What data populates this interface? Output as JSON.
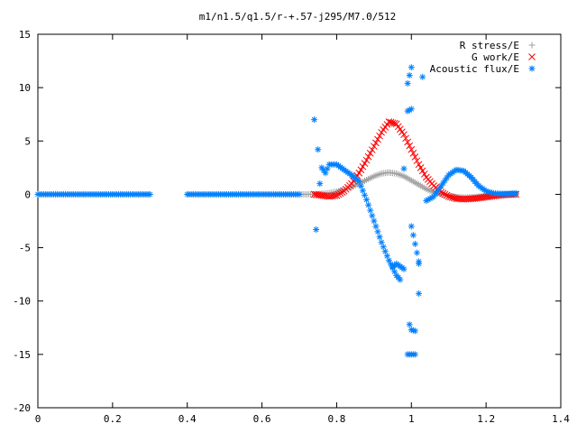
{
  "chart_data": {
    "type": "scatter",
    "title": "m1/n1.5/q1.5/r-+.57-j295/M7.0/512",
    "xlabel": "",
    "ylabel": "",
    "xlim": [
      0,
      1.4
    ],
    "ylim": [
      -20,
      15
    ],
    "x_ticks": [
      "0",
      "0.2",
      "0.4",
      "0.6",
      "0.8",
      "1",
      "1.2",
      "1.4"
    ],
    "x_tick_values": [
      0,
      0.2,
      0.4,
      0.6,
      0.8,
      1.0,
      1.2,
      1.4
    ],
    "y_ticks": [
      "15",
      "10",
      "5",
      "0",
      "-5",
      "-10",
      "-15",
      "-20"
    ],
    "y_tick_values": [
      15,
      10,
      5,
      0,
      -5,
      -10,
      -15,
      -20
    ],
    "grid": false,
    "legend_position": "top-right",
    "series": [
      {
        "name": "R stress/E",
        "marker": "+",
        "color": "#a0a0a0",
        "points": [
          [
            0.0,
            0
          ],
          [
            0.1,
            0
          ],
          [
            0.2,
            0
          ],
          [
            0.3,
            0
          ],
          [
            0.4,
            0
          ],
          [
            0.5,
            0
          ],
          [
            0.6,
            0
          ],
          [
            0.7,
            0
          ],
          [
            0.74,
            0.0
          ],
          [
            0.76,
            0.05
          ],
          [
            0.78,
            0.12
          ],
          [
            0.8,
            0.25
          ],
          [
            0.82,
            0.45
          ],
          [
            0.84,
            0.7
          ],
          [
            0.86,
            1.0
          ],
          [
            0.88,
            1.35
          ],
          [
            0.9,
            1.7
          ],
          [
            0.92,
            1.95
          ],
          [
            0.94,
            2.05
          ],
          [
            0.96,
            1.95
          ],
          [
            0.98,
            1.7
          ],
          [
            1.0,
            1.3
          ],
          [
            1.02,
            0.9
          ],
          [
            1.04,
            0.5
          ],
          [
            1.06,
            0.2
          ],
          [
            1.08,
            0.0
          ],
          [
            1.1,
            -0.15
          ],
          [
            1.12,
            -0.25
          ],
          [
            1.14,
            -0.3
          ],
          [
            1.16,
            -0.28
          ],
          [
            1.18,
            -0.22
          ],
          [
            1.2,
            -0.15
          ],
          [
            1.22,
            -0.08
          ],
          [
            1.24,
            -0.03
          ],
          [
            1.26,
            0.0
          ],
          [
            1.28,
            0.0
          ]
        ]
      },
      {
        "name": "G work/E",
        "marker": "x",
        "color": "#ff0000",
        "points": [
          [
            0.74,
            0.0
          ],
          [
            0.76,
            -0.1
          ],
          [
            0.78,
            -0.2
          ],
          [
            0.8,
            -0.1
          ],
          [
            0.82,
            0.3
          ],
          [
            0.84,
            1.0
          ],
          [
            0.86,
            2.0
          ],
          [
            0.88,
            3.2
          ],
          [
            0.9,
            4.5
          ],
          [
            0.92,
            5.8
          ],
          [
            0.94,
            6.8
          ],
          [
            0.96,
            6.6
          ],
          [
            0.98,
            5.6
          ],
          [
            1.0,
            4.2
          ],
          [
            1.02,
            2.8
          ],
          [
            1.04,
            1.6
          ],
          [
            1.06,
            0.8
          ],
          [
            1.08,
            0.2
          ],
          [
            1.1,
            -0.2
          ],
          [
            1.12,
            -0.4
          ],
          [
            1.14,
            -0.45
          ],
          [
            1.16,
            -0.42
          ],
          [
            1.18,
            -0.35
          ],
          [
            1.2,
            -0.25
          ],
          [
            1.22,
            -0.15
          ],
          [
            1.24,
            -0.08
          ],
          [
            1.26,
            -0.03
          ],
          [
            1.28,
            0.0
          ]
        ]
      },
      {
        "name": "Acoustic flux/E",
        "marker": "*",
        "color": "#0080ff",
        "points": [
          [
            0.0,
            0
          ],
          [
            0.1,
            0
          ],
          [
            0.2,
            0
          ],
          [
            0.3,
            0
          ],
          [
            0.4,
            0
          ],
          [
            0.5,
            0
          ],
          [
            0.6,
            0
          ],
          [
            0.7,
            0
          ],
          [
            0.74,
            7.0
          ],
          [
            0.745,
            -3.3
          ],
          [
            0.75,
            4.2
          ],
          [
            0.755,
            1.0
          ],
          [
            0.76,
            2.5
          ],
          [
            0.77,
            2.0
          ],
          [
            0.78,
            2.8
          ],
          [
            0.8,
            2.8
          ],
          [
            0.82,
            2.3
          ],
          [
            0.84,
            1.8
          ],
          [
            0.86,
            1.2
          ],
          [
            0.88,
            -0.5
          ],
          [
            0.9,
            -2.5
          ],
          [
            0.92,
            -4.5
          ],
          [
            0.94,
            -6.2
          ],
          [
            0.96,
            -7.6
          ],
          [
            0.97,
            -8.0
          ],
          [
            0.95,
            -6.8
          ],
          [
            0.96,
            -6.5
          ],
          [
            0.98,
            -7.0
          ],
          [
            0.99,
            10.4
          ],
          [
            1.0,
            11.9
          ],
          [
            0.995,
            -12.2
          ],
          [
            1.0,
            -12.7
          ],
          [
            1.01,
            -12.8
          ],
          [
            0.99,
            -15.0
          ],
          [
            1.01,
            -15.0
          ],
          [
            0.99,
            7.8
          ],
          [
            1.0,
            8.0
          ],
          [
            0.98,
            2.4
          ],
          [
            1.0,
            -3.0
          ],
          [
            1.02,
            -6.3
          ],
          [
            1.02,
            -9.3
          ],
          [
            1.03,
            11.0
          ],
          [
            1.02,
            -6.5
          ],
          [
            1.04,
            -0.6
          ],
          [
            1.06,
            -0.2
          ],
          [
            1.08,
            0.8
          ],
          [
            1.1,
            1.8
          ],
          [
            1.12,
            2.3
          ],
          [
            1.14,
            2.2
          ],
          [
            1.16,
            1.6
          ],
          [
            1.18,
            0.8
          ],
          [
            1.2,
            0.3
          ],
          [
            1.22,
            0.1
          ],
          [
            1.24,
            0.05
          ],
          [
            1.26,
            0.05
          ],
          [
            1.28,
            0.1
          ]
        ]
      }
    ]
  }
}
